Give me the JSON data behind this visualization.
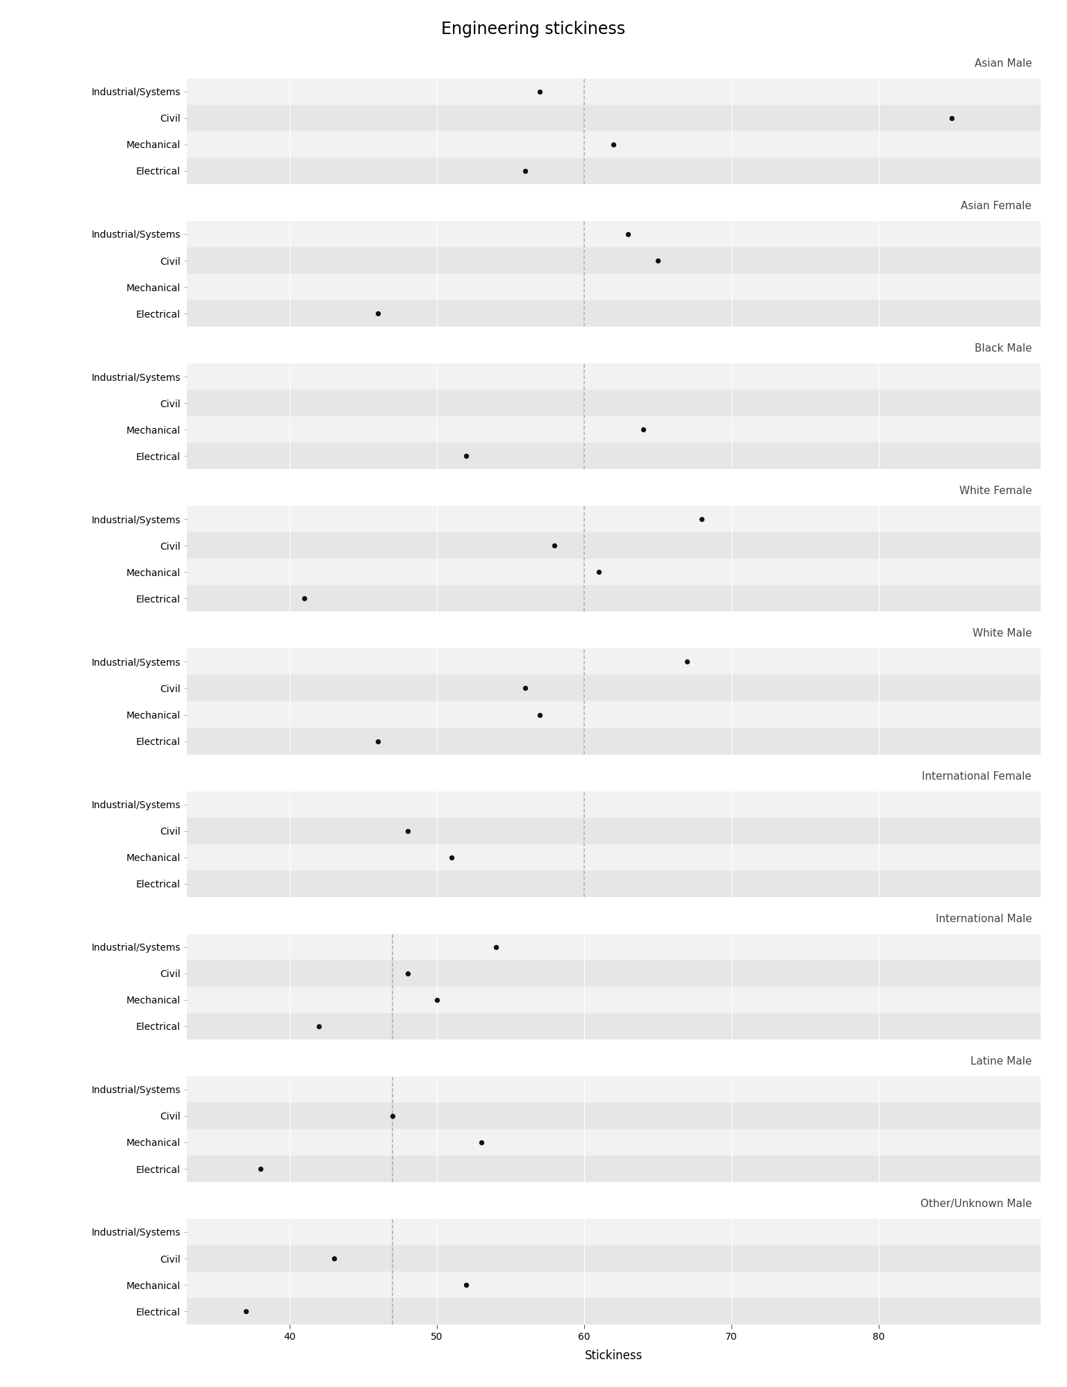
{
  "title": "Engineering stickiness",
  "xlabel": "Stickiness",
  "xlim": [
    33,
    91
  ],
  "xticks": [
    40,
    50,
    60,
    70,
    80
  ],
  "disciplines": [
    "Industrial/Systems",
    "Civil",
    "Mechanical",
    "Electrical"
  ],
  "panels": [
    {
      "label": "Asian Male",
      "values": {
        "Industrial/Systems": 57,
        "Civil": 85,
        "Mechanical": 62,
        "Electrical": 56
      },
      "vline": 60
    },
    {
      "label": "Asian Female",
      "values": {
        "Industrial/Systems": 63,
        "Civil": 65,
        "Mechanical": null,
        "Electrical": 46
      },
      "vline": 60
    },
    {
      "label": "Black Male",
      "values": {
        "Industrial/Systems": null,
        "Civil": null,
        "Mechanical": 64,
        "Electrical": 52
      },
      "vline": 60
    },
    {
      "label": "White Female",
      "values": {
        "Industrial/Systems": 68,
        "Civil": 58,
        "Mechanical": 61,
        "Electrical": 41
      },
      "vline": 60
    },
    {
      "label": "White Male",
      "values": {
        "Industrial/Systems": 67,
        "Civil": 56,
        "Mechanical": 57,
        "Electrical": 46
      },
      "vline": 60
    },
    {
      "label": "International Female",
      "values": {
        "Industrial/Systems": null,
        "Civil": 48,
        "Mechanical": 51,
        "Electrical": null
      },
      "vline": 60
    },
    {
      "label": "International Male",
      "values": {
        "Industrial/Systems": 54,
        "Civil": 48,
        "Mechanical": 50,
        "Electrical": 42
      },
      "vline": 47
    },
    {
      "label": "Latine Male",
      "values": {
        "Industrial/Systems": null,
        "Civil": 47,
        "Mechanical": 53,
        "Electrical": 38
      },
      "vline": 47
    },
    {
      "label": "Other/Unknown Male",
      "values": {
        "Industrial/Systems": null,
        "Civil": 43,
        "Mechanical": 52,
        "Electrical": 37
      },
      "vline": 47
    }
  ],
  "panel_header_bg": "#d9d9d9",
  "row_colors": [
    "#f2f2f2",
    "#e6e6e6"
  ],
  "dot_color": "#111111",
  "dot_size": 28,
  "vline_color": "#aaaaaa",
  "vline_style": "--",
  "grid_color": "#ffffff",
  "title_fontsize": 17,
  "axis_label_fontsize": 12,
  "tick_fontsize": 10,
  "panel_label_fontsize": 11,
  "ytick_fontsize": 10
}
